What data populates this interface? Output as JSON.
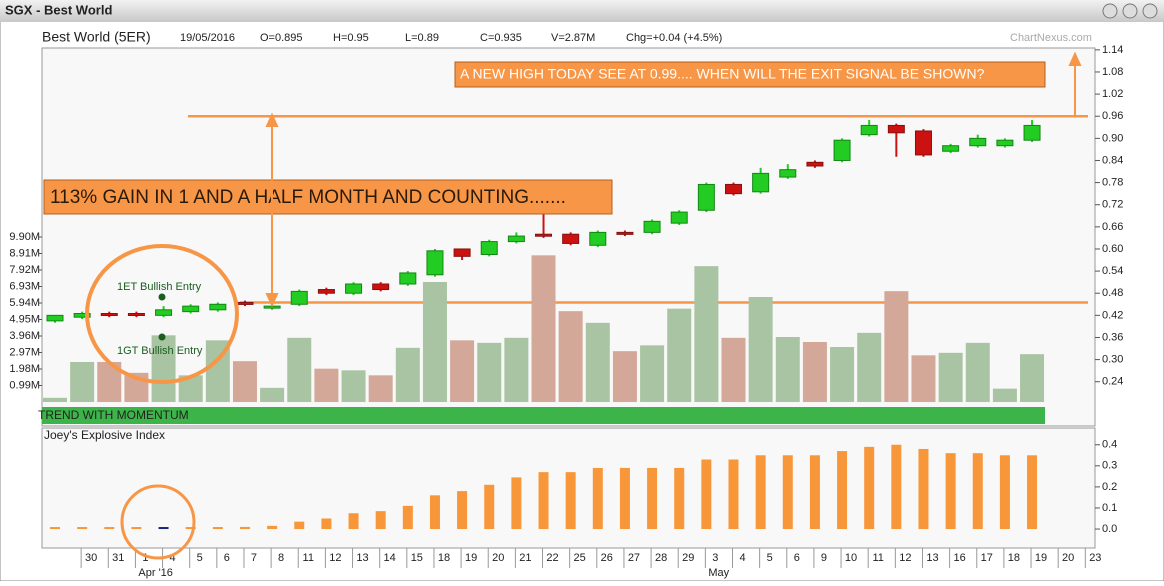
{
  "window": {
    "title": "SGX - Best World"
  },
  "header": {
    "name": "Best World (5ER)",
    "date": "19/05/2016",
    "open": "O=0.895",
    "high": "H=0.95",
    "low": "L=0.89",
    "close": "C=0.935",
    "volume": "V=2.87M",
    "change": "Chg=+0.04 (+4.5%)",
    "watermark": "ChartNexus.com"
  },
  "chart_data": [
    {
      "type": "candlestick",
      "categories": [
        null,
        "30",
        "31",
        "1",
        "4",
        "5",
        "6",
        "7",
        "8",
        "11",
        "12",
        "13",
        "14",
        "15",
        "18",
        "19",
        "20",
        "21",
        "22",
        "25",
        "26",
        "27",
        "28",
        "29",
        "3",
        "4",
        "5",
        "6",
        "9",
        "10",
        "11",
        "12",
        "13",
        "16",
        "17",
        "18",
        "19",
        "20",
        "23"
      ],
      "month_labels": [
        "Apr '16",
        "May"
      ],
      "open": [
        0.405,
        0.415,
        0.425,
        0.425,
        0.42,
        0.43,
        0.435,
        0.455,
        0.44,
        0.45,
        0.49,
        0.48,
        0.505,
        0.505,
        0.53,
        0.6,
        0.585,
        0.62,
        0.64,
        0.64,
        0.61,
        0.645,
        0.645,
        0.67,
        0.705,
        0.775,
        0.755,
        0.795,
        0.835,
        0.84,
        0.91,
        0.935,
        0.92,
        0.865,
        0.88,
        0.88,
        0.895,
        null,
        null
      ],
      "high": [
        0.42,
        0.43,
        0.43,
        0.43,
        0.445,
        0.45,
        0.455,
        0.46,
        0.45,
        0.49,
        0.495,
        0.51,
        0.51,
        0.54,
        0.6,
        0.6,
        0.625,
        0.645,
        0.7,
        0.645,
        0.65,
        0.65,
        0.68,
        0.705,
        0.78,
        0.78,
        0.82,
        0.83,
        0.84,
        0.9,
        0.95,
        0.94,
        0.925,
        0.885,
        0.91,
        0.9,
        0.95,
        null,
        null
      ],
      "low": [
        0.4,
        0.41,
        0.415,
        0.415,
        0.415,
        0.425,
        0.43,
        0.445,
        0.435,
        0.445,
        0.475,
        0.475,
        0.485,
        0.5,
        0.525,
        0.57,
        0.58,
        0.615,
        0.63,
        0.61,
        0.605,
        0.635,
        0.64,
        0.665,
        0.7,
        0.745,
        0.75,
        0.79,
        0.82,
        0.835,
        0.905,
        0.85,
        0.85,
        0.86,
        0.875,
        0.875,
        0.89,
        null,
        null
      ],
      "close": [
        0.42,
        0.425,
        0.42,
        0.42,
        0.435,
        0.445,
        0.45,
        0.45,
        0.445,
        0.485,
        0.48,
        0.505,
        0.49,
        0.535,
        0.595,
        0.58,
        0.62,
        0.635,
        0.635,
        0.615,
        0.645,
        0.64,
        0.675,
        0.7,
        0.775,
        0.75,
        0.805,
        0.815,
        0.825,
        0.895,
        0.935,
        0.915,
        0.855,
        0.88,
        0.9,
        0.895,
        0.935,
        null,
        null
      ],
      "volume": [
        0.25,
        2.4,
        2.4,
        1.75,
        4.0,
        1.6,
        3.7,
        2.45,
        0.85,
        3.85,
        2.0,
        1.9,
        1.6,
        3.25,
        7.2,
        3.7,
        3.55,
        3.85,
        8.8,
        5.45,
        4.75,
        3.05,
        3.4,
        5.6,
        8.15,
        3.85,
        6.3,
        3.9,
        3.6,
        3.3,
        4.15,
        6.65,
        2.8,
        2.95,
        3.55,
        0.8,
        2.87,
        null,
        null
      ],
      "up_color": "#22cc22",
      "down_color": "#cc1111",
      "volume_up_color": "#a9c4a2",
      "volume_down_color": "#d3a899",
      "ylim": [
        0.185,
        1.145
      ],
      "yticks": [
        0.24,
        {
          "value": 0.3,
          "label": "0.30"
        },
        0.36,
        0.42,
        0.48,
        0.54,
        {
          "value": 0.6,
          "label": "0.60"
        },
        0.66,
        0.72,
        0.78,
        0.84,
        {
          "value": 0.9,
          "label": "0.90"
        },
        0.96,
        1.02,
        1.08,
        1.14
      ],
      "y2lim": [
        0,
        21.24
      ],
      "y2ticks": [
        {
          "value": 0.99,
          "label": "0.99M"
        },
        {
          "value": 1.98,
          "label": "1.98M"
        },
        {
          "value": 2.97,
          "label": "2.97M"
        },
        {
          "value": 3.96,
          "label": "3.96M"
        },
        {
          "value": 4.95,
          "label": "4.95M"
        },
        {
          "value": 5.94,
          "label": "5.94M"
        },
        {
          "value": 6.93,
          "label": "6.93M"
        },
        {
          "value": 7.92,
          "label": "7.92M"
        },
        {
          "value": 8.91,
          "label": "8.91M"
        },
        {
          "value": 9.9,
          "label": "9.90M"
        }
      ],
      "hlines": [
        0.96,
        0.455
      ],
      "hline_color": "#f79646",
      "annotations": [
        "A NEW HIGH TODAY SEE AT 0.99.... WHEN WILL THE EXIT SIGNAL BE SHOWN?",
        "113% GAIN IN 1 AND A HALF MONTH AND COUNTING......."
      ],
      "signals": [
        "1ET Bullish Entry",
        "1GT Bullish Entry"
      ],
      "band_label": "TREND WITH MOMENTUM"
    },
    {
      "type": "bar",
      "title": "Joey's Explosive Index",
      "values": [
        0,
        0,
        0,
        0,
        0,
        0.005,
        0.005,
        0.01,
        0.015,
        0.035,
        0.05,
        0.075,
        0.085,
        0.11,
        0.16,
        0.18,
        0.21,
        0.245,
        0.27,
        0.27,
        0.29,
        0.29,
        0.29,
        0.29,
        0.33,
        0.33,
        0.35,
        0.35,
        0.35,
        0.37,
        0.39,
        0.4,
        0.38,
        0.36,
        0.36,
        0.35,
        0.35,
        null,
        null
      ],
      "color": "#f7973a",
      "highlight": {
        "index": 4,
        "color": "#1a237e"
      },
      "ylim": [
        -0.09,
        0.47
      ],
      "yticks": [
        {
          "value": 0,
          "label": "0.0"
        },
        0.1,
        0.2,
        0.3,
        0.4
      ]
    }
  ]
}
